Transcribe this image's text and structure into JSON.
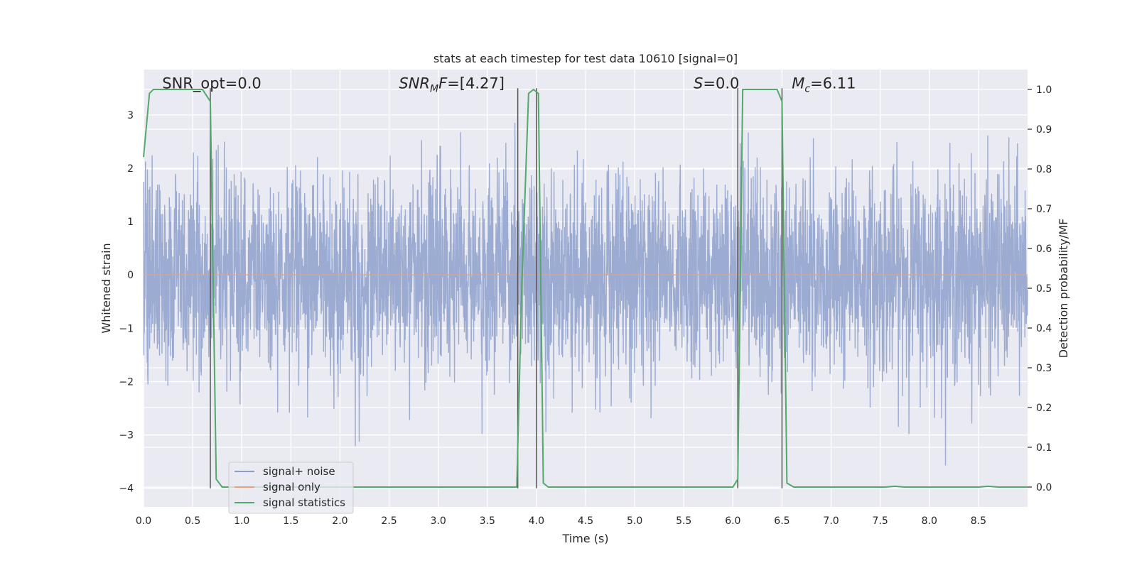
{
  "chart_data": {
    "type": "line",
    "title": "stats at each timestep for test data 10610 [signal=0]",
    "xlabel": "Time (s)",
    "ylabel_left": "Whitened strain",
    "ylabel_right": "Detection probability/MF",
    "xlim": [
      0,
      9.0
    ],
    "ylim_left": [
      -4.35,
      3.85
    ],
    "ylim_right": [
      -0.05,
      1.05
    ],
    "xticks": [
      "0.0",
      "0.5",
      "1.0",
      "1.5",
      "2.0",
      "2.5",
      "3.0",
      "3.5",
      "4.0",
      "4.5",
      "5.0",
      "5.5",
      "6.0",
      "6.5",
      "7.0",
      "7.5",
      "8.0",
      "8.5"
    ],
    "xtick_values": [
      0,
      0.5,
      1.0,
      1.5,
      2.0,
      2.5,
      3.0,
      3.5,
      4.0,
      4.5,
      5.0,
      5.5,
      6.0,
      6.5,
      7.0,
      7.5,
      8.0,
      8.5
    ],
    "yticks_left": [
      "−4",
      "−3",
      "−2",
      "−1",
      "0",
      "1",
      "2",
      "3"
    ],
    "ytick_values_left": [
      -4,
      -3,
      -2,
      -1,
      0,
      1,
      2,
      3
    ],
    "yticks_right": [
      "0.0",
      "0.1",
      "0.2",
      "0.3",
      "0.4",
      "0.5",
      "0.6",
      "0.7",
      "0.8",
      "0.9",
      "1.0"
    ],
    "ytick_values_right": [
      0,
      0.1,
      0.2,
      0.3,
      0.4,
      0.5,
      0.6,
      0.7,
      0.8,
      0.9,
      1.0
    ],
    "grid": true,
    "legend_position": "lower-left",
    "annotations": [
      {
        "text": "SNR_opt=0.0",
        "x": 0.19,
        "y": 3.5
      },
      {
        "text": "SNR_M F=[4.27]",
        "x": 2.6,
        "y": 3.5
      },
      {
        "text": "S=0.0",
        "x": 5.6,
        "y": 3.5
      },
      {
        "text": "M_c=6.11",
        "x": 6.6,
        "y": 3.5
      }
    ],
    "series": [
      {
        "name": "signal+ noise",
        "color": "#8da0cb",
        "axis": "left",
        "kind": "noise",
        "x_range": [
          0,
          9.0
        ],
        "amplitude_std": 0.95
      },
      {
        "name": "signal only",
        "color": "#e8a17e",
        "axis": "left",
        "x": [
          0,
          9.0
        ],
        "y": [
          0,
          0
        ]
      },
      {
        "name": "signal statistics",
        "color": "#55a868",
        "axis": "right",
        "x": [
          0.0,
          0.06,
          0.1,
          0.6,
          0.68,
          0.74,
          0.8,
          3.8,
          3.85,
          3.92,
          3.97,
          4.02,
          4.07,
          4.12,
          6.0,
          6.05,
          6.1,
          6.45,
          6.5,
          6.55,
          6.62,
          7.55,
          7.65,
          7.75,
          8.5,
          8.6,
          8.7,
          9.0
        ],
        "y": [
          0.83,
          0.99,
          1.0,
          1.0,
          0.97,
          0.02,
          0.0,
          0.0,
          0.5,
          0.99,
          1.0,
          0.99,
          0.01,
          0.0,
          0.0,
          0.02,
          1.0,
          1.0,
          0.97,
          0.01,
          0.0,
          0.0,
          0.002,
          0.0,
          0.0,
          0.002,
          0.0,
          0.0
        ]
      }
    ],
    "vertical_lines": [
      0.68,
      3.81,
      4.0,
      6.05,
      6.5
    ],
    "vertical_line_range": [
      -4,
      3.5
    ]
  }
}
